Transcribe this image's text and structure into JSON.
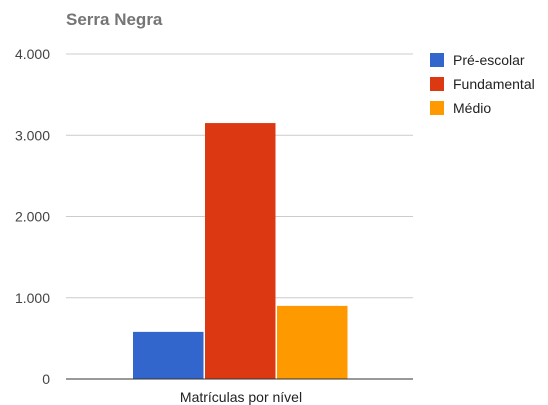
{
  "chart_data": {
    "type": "bar",
    "title": "Serra Negra",
    "categories": [
      "Matrículas por nível"
    ],
    "series": [
      {
        "name": "Pré-escolar",
        "values": [
          580
        ],
        "color": "#3366cc"
      },
      {
        "name": "Fundamental",
        "values": [
          3150
        ],
        "color": "#dc3912"
      },
      {
        "name": "Médio",
        "values": [
          900
        ],
        "color": "#ff9900"
      }
    ],
    "ylim": [
      0,
      4000
    ],
    "yticks": [
      0,
      1000,
      2000,
      3000,
      4000
    ],
    "ytick_labels": [
      "0",
      "1.000",
      "2.000",
      "3.000",
      "4.000"
    ],
    "grid": true,
    "legend_position": "right"
  }
}
